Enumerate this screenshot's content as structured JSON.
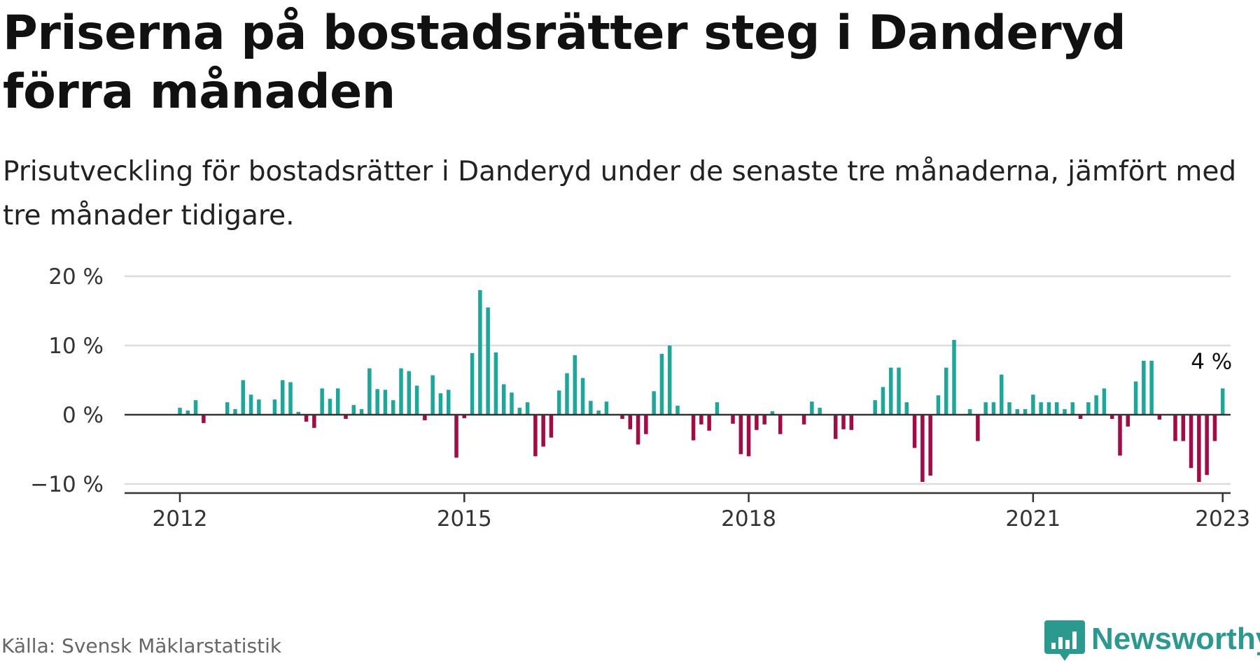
{
  "title": "Priserna på bostadsrätter steg i Danderyd förra månaden",
  "subtitle": "Prisutveckling för bostadsrätter i Danderyd under de senaste tre månaderna, jämfört med tre månader tidigare.",
  "source": "Källa: Svensk Mäklarstatistik",
  "brand": {
    "name": "Newsworthy",
    "icon": "newsworthy-logo-icon",
    "color": "#2a9a8e"
  },
  "chart_data": {
    "type": "bar",
    "title": "Priserna på bostadsrätter steg i Danderyd förra månaden",
    "ylabel": "",
    "xlabel": "",
    "ylim": [
      -11,
      20
    ],
    "y_ticks": [
      20,
      10,
      0,
      -10
    ],
    "y_tick_labels": [
      "20 %",
      "10 %",
      "0 %",
      "−10 %"
    ],
    "x_start": "2011-06",
    "x_end": "2023-02",
    "x_ticks": [
      {
        "date": "2012-01",
        "label": "2012"
      },
      {
        "date": "2015-01",
        "label": "2015"
      },
      {
        "date": "2018-01",
        "label": "2018"
      },
      {
        "date": "2021-01",
        "label": "2021"
      },
      {
        "date": "2023-01",
        "label": "2023"
      }
    ],
    "grid": true,
    "legend": "none",
    "positive_color": "#1aa89b",
    "negative_color": "#a50a46",
    "grid_color": "#dcdcdc",
    "axis_color": "#333333",
    "annotation": {
      "date": "2023-01",
      "text": "4 %"
    },
    "series": [
      {
        "dates": [
          "2012-01",
          "2012-02",
          "2012-03",
          "2012-04",
          "2012-05",
          "2012-06",
          "2012-07",
          "2012-08",
          "2012-09",
          "2012-10",
          "2012-11",
          "2012-12",
          "2013-01",
          "2013-02",
          "2013-03",
          "2013-04",
          "2013-05",
          "2013-06",
          "2013-07",
          "2013-08",
          "2013-09",
          "2013-10",
          "2013-11",
          "2013-12",
          "2014-01",
          "2014-02",
          "2014-03",
          "2014-04",
          "2014-05",
          "2014-06",
          "2014-07",
          "2014-08",
          "2014-09",
          "2014-10",
          "2014-11",
          "2014-12",
          "2015-01",
          "2015-02",
          "2015-03",
          "2015-04",
          "2015-05",
          "2015-06",
          "2015-07",
          "2015-08",
          "2015-09",
          "2015-10",
          "2015-11",
          "2015-12",
          "2016-01",
          "2016-02",
          "2016-03",
          "2016-04",
          "2016-05",
          "2016-06",
          "2016-07",
          "2016-08",
          "2016-09",
          "2016-10",
          "2016-11",
          "2016-12",
          "2017-01",
          "2017-02",
          "2017-03",
          "2017-04",
          "2017-05",
          "2017-06",
          "2017-07",
          "2017-08",
          "2017-09",
          "2017-10",
          "2017-11",
          "2017-12",
          "2018-01",
          "2018-02",
          "2018-03",
          "2018-04",
          "2018-05",
          "2018-06",
          "2018-07",
          "2018-08",
          "2018-09",
          "2018-10",
          "2018-11",
          "2018-12",
          "2019-01",
          "2019-02",
          "2019-03",
          "2019-04",
          "2019-05",
          "2019-06",
          "2019-07",
          "2019-08",
          "2019-09",
          "2019-10",
          "2019-11",
          "2019-12",
          "2020-01",
          "2020-02",
          "2020-03",
          "2020-04",
          "2020-05",
          "2020-06",
          "2020-07",
          "2020-08",
          "2020-09",
          "2020-10",
          "2020-11",
          "2020-12",
          "2021-01",
          "2021-02",
          "2021-03",
          "2021-04",
          "2021-05",
          "2021-06",
          "2021-07",
          "2021-08",
          "2021-09",
          "2021-10",
          "2021-11",
          "2021-12",
          "2022-01",
          "2022-02",
          "2022-03",
          "2022-04",
          "2022-05",
          "2022-06",
          "2022-07",
          "2022-08",
          "2022-09",
          "2022-10",
          "2022-11",
          "2022-12",
          "2023-01"
        ],
        "values": [
          1.0,
          0.6,
          2.1,
          -1.2,
          0,
          0,
          1.8,
          0.8,
          5.0,
          2.9,
          2.2,
          0,
          2.2,
          5.0,
          4.7,
          0.4,
          -1.0,
          -1.9,
          3.8,
          2.3,
          3.8,
          -0.6,
          1.4,
          0.8,
          6.7,
          3.7,
          3.6,
          2.1,
          6.7,
          6.3,
          4.2,
          -0.8,
          5.7,
          3.1,
          3.6,
          -6.2,
          -0.5,
          8.9,
          18.0,
          15.5,
          9.0,
          4.4,
          3.2,
          1.0,
          1.8,
          -6.0,
          -4.6,
          -3.3,
          3.5,
          6.0,
          8.6,
          5.3,
          2.0,
          0.6,
          1.9,
          0,
          -0.6,
          -2.1,
          -4.3,
          -2.8,
          3.4,
          8.8,
          10.0,
          1.3,
          0,
          -3.7,
          -1.4,
          -2.3,
          1.8,
          0,
          -1.3,
          -5.7,
          -6.0,
          -2.2,
          -1.4,
          0.5,
          -2.8,
          0,
          0,
          -1.4,
          1.9,
          1.0,
          0,
          -3.5,
          -2.1,
          -2.2,
          0,
          0,
          2.1,
          4.0,
          6.8,
          6.8,
          1.8,
          -4.8,
          -9.7,
          -8.8,
          2.8,
          6.8,
          10.8,
          0,
          0.8,
          -3.8,
          1.8,
          1.8,
          5.8,
          1.8,
          0.8,
          0.8,
          2.9,
          1.8,
          1.8,
          1.8,
          0.8,
          1.8,
          -0.6,
          1.8,
          2.8,
          3.8,
          -0.6,
          -5.9,
          -1.7,
          4.8,
          7.8,
          7.8,
          -0.7,
          0,
          -3.8,
          -3.8,
          -7.7,
          -9.7,
          -8.7,
          -3.8,
          3.8
        ]
      }
    ]
  }
}
